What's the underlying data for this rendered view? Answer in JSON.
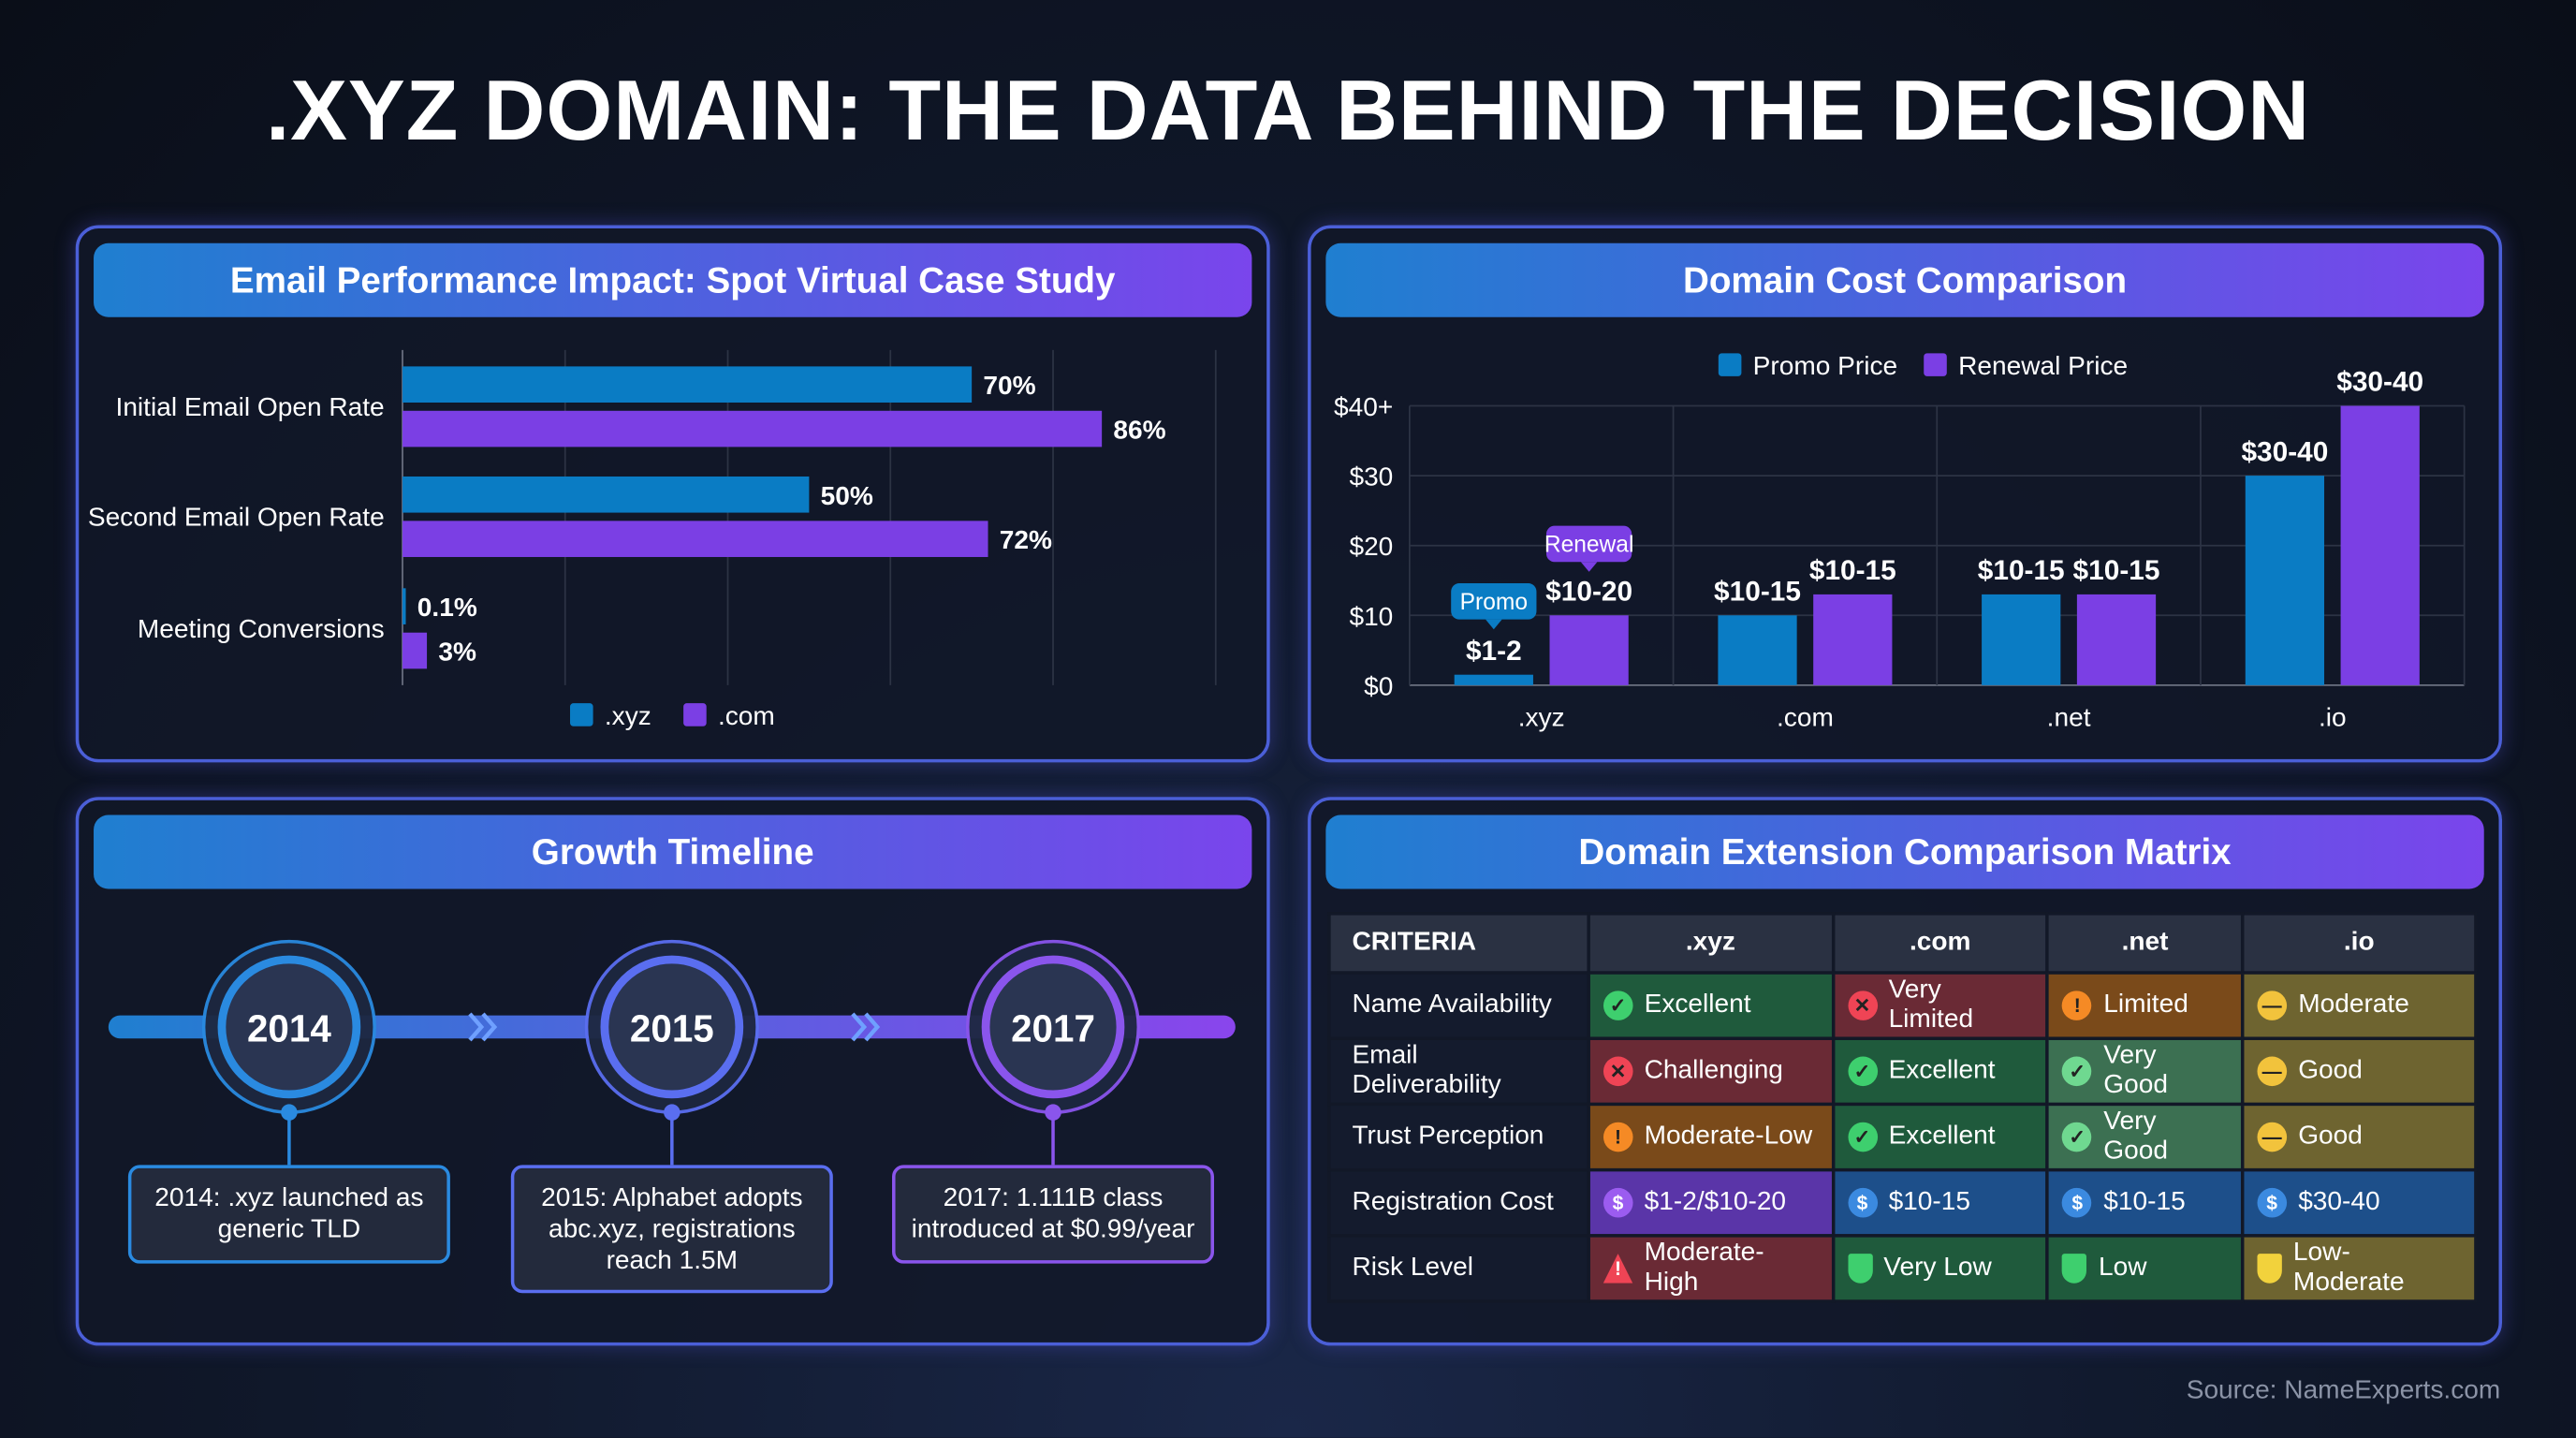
{
  "title": ".XYZ DOMAIN: THE DATA BEHIND THE DECISION",
  "source": "Source: NameExperts.com",
  "colors": {
    "xyz": "#0a7cc4",
    "com": "#7b3fe4",
    "promo": "#0a7cc4",
    "renewal": "#7b3fe4"
  },
  "panels": {
    "email": {
      "title": "Email Performance Impact: Spot Virtual Case Study"
    },
    "cost": {
      "title": "Domain Cost Comparison"
    },
    "timeline": {
      "title": "Growth Timeline"
    },
    "matrix": {
      "title": "Domain Extension Comparison Matrix"
    }
  },
  "chart_data": [
    {
      "type": "bar",
      "orientation": "horizontal",
      "categories": [
        "Initial Email Open Rate",
        "Second Email Open Rate",
        "Meeting Conversions"
      ],
      "series": [
        {
          "name": ".xyz",
          "values": [
            70,
            50,
            0.1
          ],
          "labels": [
            "70%",
            "50%",
            "0.1%"
          ]
        },
        {
          "name": ".com",
          "values": [
            86,
            72,
            3
          ],
          "labels": [
            "86%",
            "72%",
            "3%"
          ]
        }
      ],
      "xlim": [
        0,
        100
      ],
      "grid": true,
      "legend": "bottom"
    },
    {
      "type": "bar",
      "categories": [
        ".xyz",
        ".com",
        ".net",
        ".io"
      ],
      "series": [
        {
          "name": "Promo Price",
          "values": [
            1.5,
            10,
            13,
            30
          ],
          "labels": [
            "$1-2",
            "$10-15",
            "$10-15",
            "$30-40"
          ]
        },
        {
          "name": "Renewal Price",
          "values": [
            10,
            13,
            13,
            40
          ],
          "labels": [
            "$10-20",
            "$10-15",
            "$10-15",
            "$30-40"
          ]
        }
      ],
      "yticks": [
        "$0",
        "$10",
        "$20",
        "$30",
        "$40+"
      ],
      "ylim": [
        0,
        40
      ],
      "grid": true,
      "legend": "top",
      "annotations": [
        {
          "category": ".xyz",
          "series": "Promo Price",
          "text": "Promo"
        },
        {
          "category": ".xyz",
          "series": "Renewal Price",
          "text": "Renewal"
        }
      ]
    }
  ],
  "timeline": [
    {
      "year": "2014",
      "text": "2014: .xyz launched as generic TLD"
    },
    {
      "year": "2015",
      "text": "2015: Alphabet adopts abc.xyz, registrations reach 1.5M"
    },
    {
      "year": "2017",
      "text": "2017: 1.111B class introduced at $0.99/year"
    }
  ],
  "matrix": {
    "headers": [
      "CRITERIA",
      ".xyz",
      ".com",
      ".net",
      ".io"
    ],
    "status_colors": {
      "excellent": "#1f5a3c",
      "poor": "#6a2a35",
      "limited": "#7a4a1a",
      "moderate": "#6e6430",
      "good": "#3c7052",
      "cost-xyz": "#5a35a8",
      "cost": "#1d4f8a"
    },
    "rows": [
      {
        "criteria": "Name Availability",
        "cells": [
          {
            "text": "Excellent",
            "status": "excellent",
            "icon": "check-circle"
          },
          {
            "text": "Very Limited",
            "status": "poor",
            "icon": "x-circle"
          },
          {
            "text": "Limited",
            "status": "limited",
            "icon": "exclamation-circle"
          },
          {
            "text": "Moderate",
            "status": "moderate",
            "icon": "minus-circle"
          }
        ]
      },
      {
        "criteria": "Email Deliverability",
        "cells": [
          {
            "text": "Challenging",
            "status": "poor",
            "icon": "x-circle"
          },
          {
            "text": "Excellent",
            "status": "excellent",
            "icon": "check-circle"
          },
          {
            "text": "Very Good",
            "status": "good",
            "icon": "check-circle-light"
          },
          {
            "text": "Good",
            "status": "moderate",
            "icon": "minus-circle"
          }
        ]
      },
      {
        "criteria": "Trust Perception",
        "cells": [
          {
            "text": "Moderate-Low",
            "status": "limited",
            "icon": "exclamation-circle"
          },
          {
            "text": "Excellent",
            "status": "excellent",
            "icon": "check-circle"
          },
          {
            "text": "Very Good",
            "status": "good",
            "icon": "check-circle-light"
          },
          {
            "text": "Good",
            "status": "moderate",
            "icon": "minus-circle"
          }
        ]
      },
      {
        "criteria": "Registration Cost",
        "cells": [
          {
            "text": "$1-2/$10-20",
            "status": "cost-xyz",
            "icon": "dollar-circle-purple"
          },
          {
            "text": "$10-15",
            "status": "cost",
            "icon": "dollar-circle"
          },
          {
            "text": "$10-15",
            "status": "cost",
            "icon": "dollar-circle"
          },
          {
            "text": "$30-40",
            "status": "cost",
            "icon": "dollar-circle"
          }
        ]
      },
      {
        "criteria": "Risk Level",
        "cells": [
          {
            "text": "Moderate-High",
            "status": "poor",
            "icon": "warning-triangle"
          },
          {
            "text": "Very Low",
            "status": "excellent",
            "icon": "shield-green"
          },
          {
            "text": "Low",
            "status": "excellent",
            "icon": "shield-green"
          },
          {
            "text": "Low-Moderate",
            "status": "moderate",
            "icon": "shield-yellow"
          }
        ]
      }
    ]
  }
}
